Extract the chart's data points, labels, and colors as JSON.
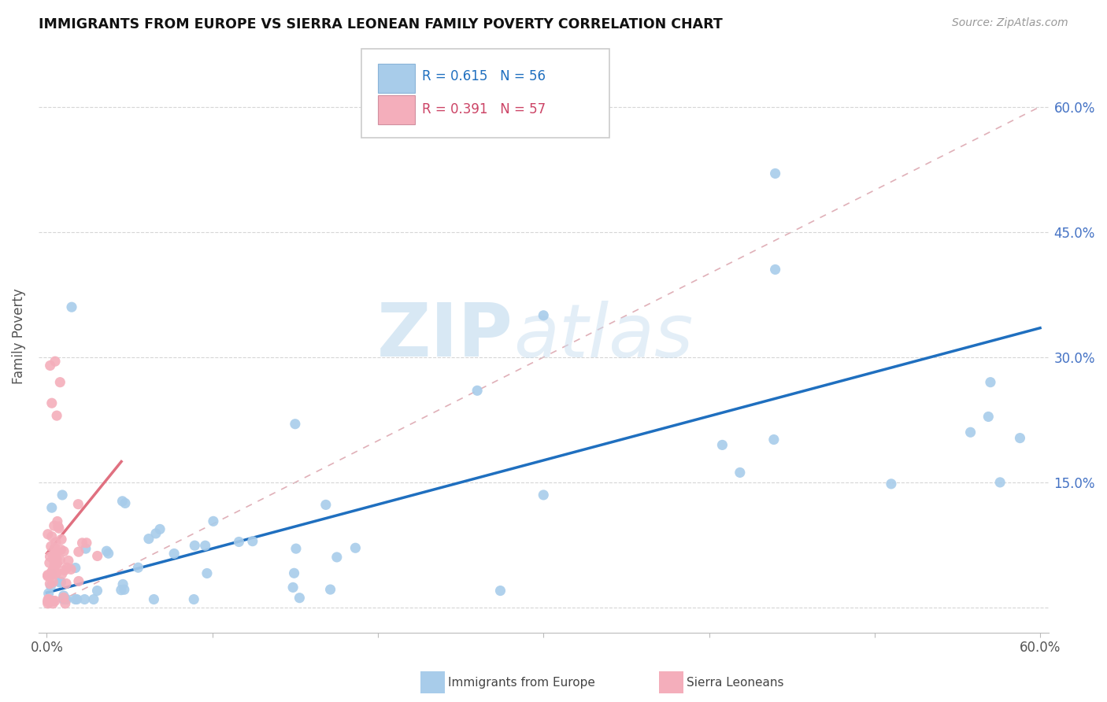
{
  "title": "IMMIGRANTS FROM EUROPE VS SIERRA LEONEAN FAMILY POVERTY CORRELATION CHART",
  "source": "Source: ZipAtlas.com",
  "ylabel": "Family Poverty",
  "legend_label1": "Immigrants from Europe",
  "legend_label2": "Sierra Leoneans",
  "R1": 0.615,
  "N1": 56,
  "R2": 0.391,
  "N2": 57,
  "color_blue": "#A8CCEA",
  "color_pink": "#F4AEBB",
  "color_blue_line": "#1f6fbf",
  "color_pink_line": "#e07080",
  "color_diag_line": "#e0b0b8",
  "xlim": [
    0.0,
    0.6
  ],
  "ylim": [
    -0.03,
    0.68
  ],
  "blue_line_x0": 0.0,
  "blue_line_y0": 0.018,
  "blue_line_x1": 0.6,
  "blue_line_y1": 0.335,
  "pink_line_x0": 0.0,
  "pink_line_y0": 0.065,
  "pink_line_x1": 0.045,
  "pink_line_y1": 0.175
}
